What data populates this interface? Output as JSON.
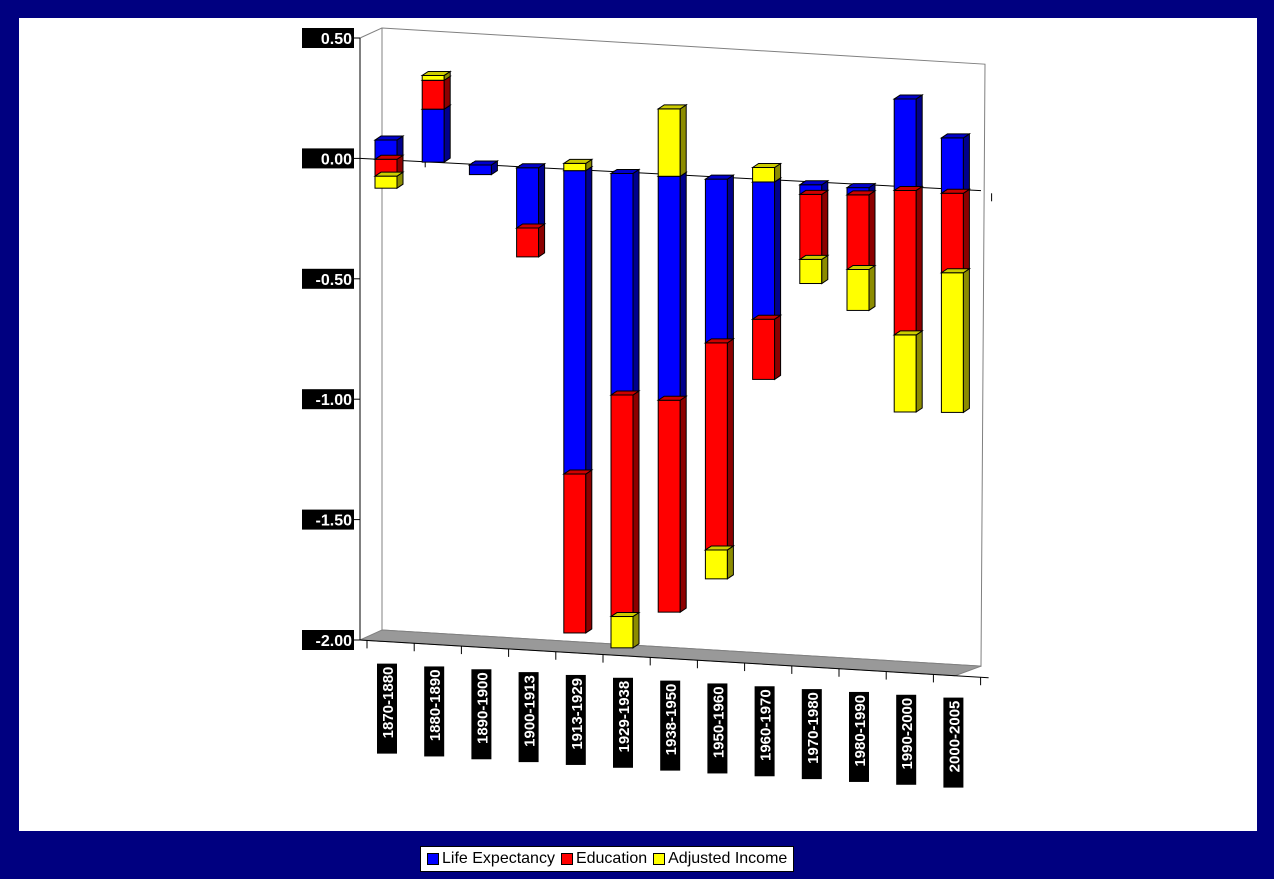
{
  "chart_data": {
    "type": "bar",
    "stacked": true,
    "three_d": true,
    "categories": [
      "1870-1880",
      "1880-1890",
      "1890-1900",
      "1900-1913",
      "1913-1929",
      "1929-1938",
      "1938-1950",
      "1950-1960",
      "1960-1970",
      "1970-1980",
      "1980-1990",
      "1990-2000",
      "2000-2005"
    ],
    "series": [
      {
        "name": "Life Expectancy",
        "color": "#0000ff",
        "values": [
          0.08,
          0.22,
          -0.04,
          -0.25,
          -1.26,
          -0.92,
          -0.93,
          -0.68,
          -0.57,
          -0.04,
          -0.03,
          0.38,
          0.23
        ]
      },
      {
        "name": "Education",
        "color": "#ff0000",
        "values": [
          -0.07,
          0.12,
          0.0,
          -0.12,
          -0.66,
          -0.92,
          -0.88,
          -0.86,
          -0.25,
          -0.27,
          -0.31,
          -0.6,
          -0.33
        ]
      },
      {
        "name": "Adjusted Income",
        "color": "#ffff00",
        "values": [
          -0.05,
          0.02,
          0.0,
          0.0,
          0.03,
          -0.13,
          0.28,
          -0.12,
          0.06,
          -0.1,
          -0.17,
          -0.32,
          -0.58
        ]
      }
    ],
    "y_ticks": [
      "0.50",
      "0.00",
      "-0.50",
      "-1.00",
      "-1.50",
      "-2.00"
    ],
    "ylim": [
      -2.0,
      0.5
    ],
    "legend_position": "bottom"
  }
}
